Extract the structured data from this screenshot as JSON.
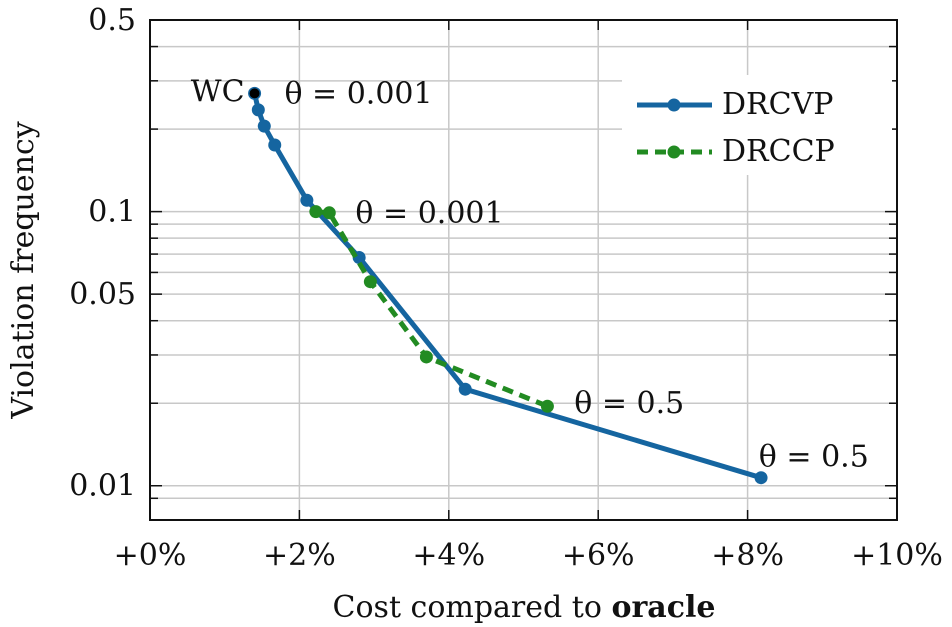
{
  "chart_data": {
    "type": "line",
    "xlabel_prefix": "Cost compared to ",
    "xlabel_bold": "oracle",
    "ylabel": "Violation frequency",
    "x_scale": "linear",
    "y_scale": "log",
    "xlim": [
      0,
      10
    ],
    "ylim": [
      0.0075,
      0.5
    ],
    "x_ticks": [
      {
        "value": 0,
        "label": "+0%"
      },
      {
        "value": 2,
        "label": "+2%"
      },
      {
        "value": 4,
        "label": "+4%"
      },
      {
        "value": 6,
        "label": "+6%"
      },
      {
        "value": 8,
        "label": "+8%"
      },
      {
        "value": 10,
        "label": "+10%"
      }
    ],
    "y_ticks": [
      {
        "value": 0.5,
        "label": "0.5"
      },
      {
        "value": 0.1,
        "label": "0.1"
      },
      {
        "value": 0.05,
        "label": "0.05"
      },
      {
        "value": 0.01,
        "label": "0.01"
      }
    ],
    "y_minor_gridlines": [
      0.2,
      0.3,
      0.4,
      0.009,
      0.02,
      0.03,
      0.04,
      0.06,
      0.07,
      0.08,
      0.09
    ],
    "grid": true,
    "legend_position": "top-right",
    "series": [
      {
        "name": "DRCVP",
        "color": "#1565a0",
        "dash": "solid",
        "x": [
          1.4,
          1.45,
          1.53,
          1.67,
          2.1,
          2.8,
          4.22,
          8.18
        ],
        "y": [
          0.27,
          0.235,
          0.205,
          0.175,
          0.11,
          0.068,
          0.0225,
          0.0107
        ]
      },
      {
        "name": "DRCCP",
        "color": "#228b22",
        "dash": "dashed",
        "x": [
          2.22,
          2.4,
          2.95,
          3.7,
          5.32
        ],
        "y": [
          0.1,
          0.099,
          0.0555,
          0.0295,
          0.0195
        ]
      }
    ],
    "wc_point": {
      "label": "WC",
      "x": 1.4,
      "y": 0.27,
      "color": "#000000"
    },
    "annotations": [
      {
        "text": "θ = 0.001",
        "x": 1.8,
        "y": 0.27
      },
      {
        "text": "θ = 0.001",
        "x": 2.75,
        "y": 0.099
      },
      {
        "text": "θ = 0.5",
        "x": 5.68,
        "y": 0.02
      },
      {
        "text": "θ = 0.5",
        "x": 8.15,
        "y": 0.0128
      }
    ]
  }
}
